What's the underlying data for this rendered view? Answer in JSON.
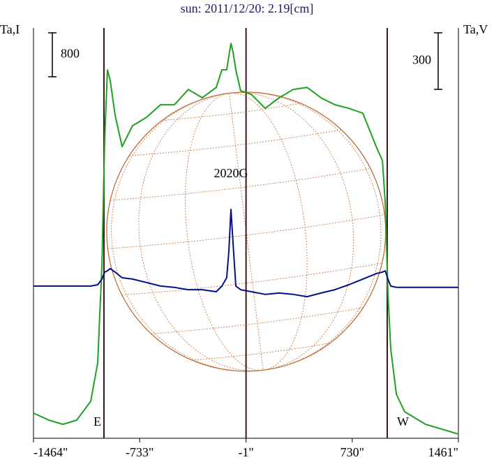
{
  "chart_data": {
    "type": "line",
    "title": "sun: 2011/12/20: 2.19[cm]",
    "ylabel": "Ta,I",
    "y2label": "Ta,V",
    "x": [
      -1464,
      -1358,
      -1262,
      -1166,
      -1070,
      -1022,
      -993,
      -974,
      -955,
      -936,
      -902,
      -854,
      -782,
      -686,
      -590,
      -494,
      -398,
      -302,
      -206,
      -167,
      -134,
      -119,
      -105,
      -90,
      -71,
      -38,
      35,
      131,
      227,
      323,
      419,
      515,
      611,
      707,
      803,
      899,
      938,
      957,
      976,
      995,
      1034,
      1091,
      1235,
      1461
    ],
    "series": [
      {
        "name": "Ta,I",
        "color": "#1fa01f",
        "values": [
          457,
          330,
          254,
          330,
          673,
          1372,
          3150,
          5436,
          6706,
          6515,
          5880,
          5309,
          5690,
          5842,
          6071,
          6071,
          6350,
          6198,
          6388,
          6706,
          6706,
          6960,
          7188,
          7023,
          6706,
          6325,
          6261,
          6007,
          6198,
          6350,
          6388,
          6198,
          6071,
          6007,
          5918,
          5283,
          5055,
          4293,
          2642,
          1626,
          800,
          483,
          254,
          76
        ]
      },
      {
        "name": "Ta,V",
        "color": "#00108c",
        "axis": "y2",
        "values": [
          0,
          0,
          0,
          0,
          0,
          7,
          37,
          74,
          81,
          93,
          74,
          44,
          37,
          19,
          0,
          -7,
          -19,
          -19,
          -30,
          0,
          44,
          185,
          407,
          222,
          0,
          -19,
          -30,
          -44,
          -37,
          -44,
          -56,
          -37,
          -19,
          7,
          37,
          67,
          74,
          81,
          37,
          0,
          -7,
          -7,
          -7,
          -7
        ]
      }
    ],
    "xlim": [
      -1464,
      1461
    ],
    "xticks": [
      {
        "value": -1464,
        "label": "-1464\""
      },
      {
        "value": -733,
        "label": "-733\""
      },
      {
        "value": -1,
        "label": "-1\""
      },
      {
        "value": 730,
        "label": "730\""
      },
      {
        "value": 1461,
        "label": "1461\""
      }
    ],
    "ylim": [
      0,
      7470
    ],
    "y2lim": [
      -807,
      1369
    ],
    "scale_bars": {
      "y": 800,
      "y2": 300
    },
    "limb_lines": [
      -979,
      -1,
      971
    ],
    "limb_labels": [
      "E",
      "W"
    ],
    "disk_radius": 960,
    "annotation": {
      "text": "2020G",
      "x": -105
    }
  }
}
